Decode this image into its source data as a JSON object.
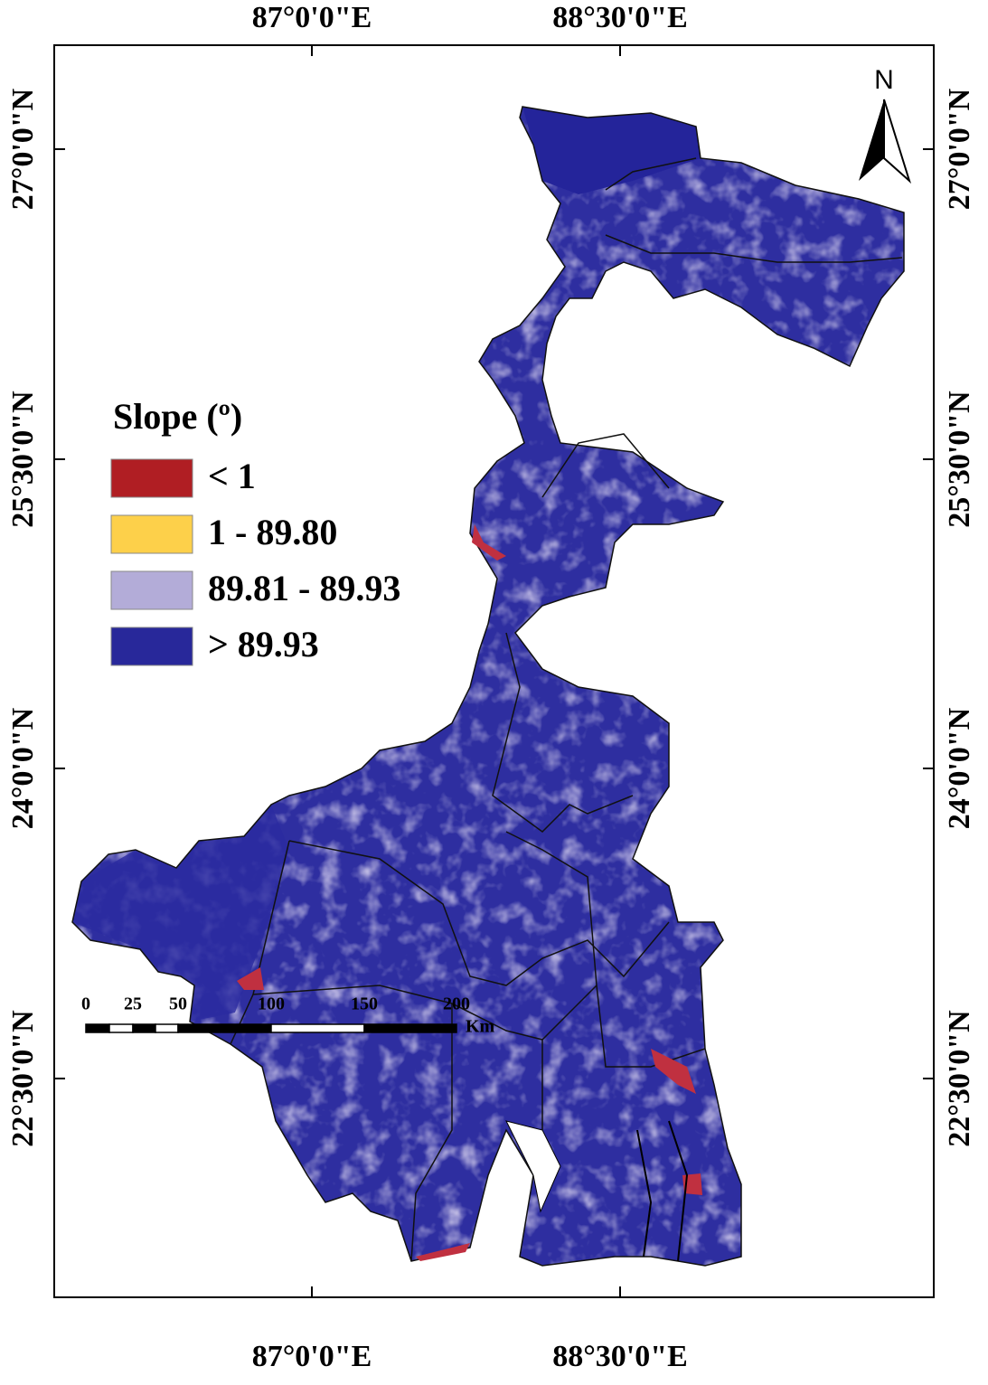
{
  "map": {
    "top_labels": [
      "87°0'0\"E",
      "88°30'0\"E"
    ],
    "bottom_labels": [
      "87°0'0\"E",
      "88°30'0\"E"
    ],
    "left_labels": [
      "27°0'0\"N",
      "25°30'0\"N",
      "24°0'0\"N",
      "22°30'0\"N"
    ],
    "right_labels": [
      "27°0'0\"N",
      "25°30'0\"N",
      "24°0'0\"N",
      "22°30'0\"N"
    ],
    "north": "N",
    "legend": {
      "title": "Slope (º)",
      "items": [
        {
          "label": "< 1",
          "color": "#b01e23"
        },
        {
          "label": "1 - 89.80",
          "color": "#fdd04a"
        },
        {
          "label": "89.81 - 89.93",
          "color": "#b3acd8"
        },
        {
          "label": "> 89.93",
          "color": "#28289a"
        }
      ]
    },
    "scale": {
      "labels": [
        "0",
        "25",
        "50",
        "100",
        "150",
        "200"
      ],
      "unit": "Km"
    }
  }
}
